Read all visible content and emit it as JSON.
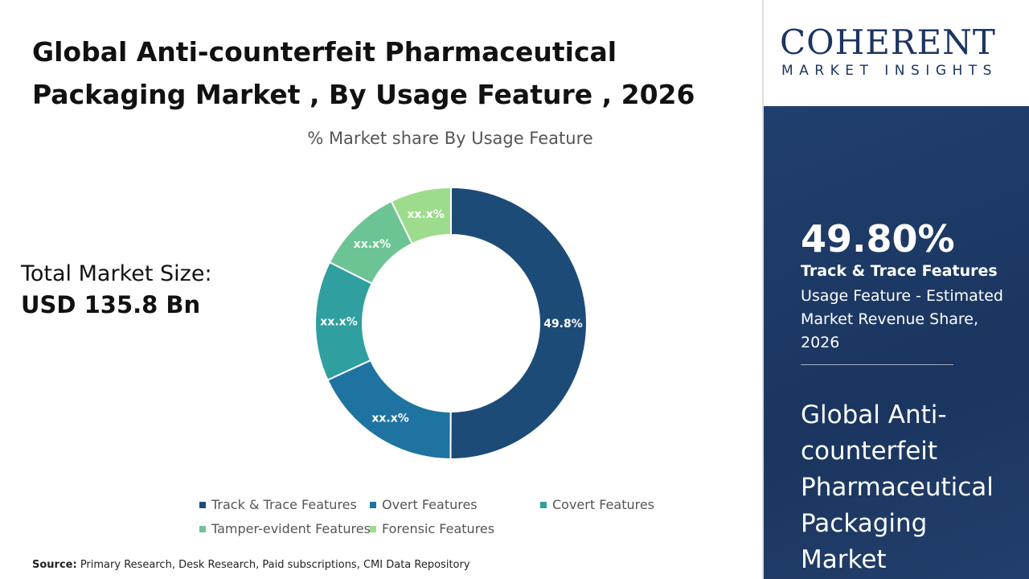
{
  "title": "Global Anti-counterfeit Pharmaceutical Packaging Market , By Usage Feature , 2026",
  "total_market": {
    "label": "Total Market Size:",
    "value": "USD 135.8 Bn"
  },
  "source": {
    "label": "Source:",
    "text": " Primary Research, Desk Research, Paid subscriptions, CMI Data Repository"
  },
  "logo": {
    "line1": "COHERENT",
    "line2": "MARKET INSIGHTS"
  },
  "highlight": {
    "value": "49.80%",
    "name": "Track & Trace Features",
    "description": "Usage Feature - Estimated Market Revenue Share, 2026",
    "market_title": "Global Anti-counterfeit Pharmaceutical Packaging Market"
  },
  "chart_data": {
    "type": "pie",
    "donut": true,
    "title": "% Market share By Usage Feature",
    "categories": [
      "Track & Trace Features",
      "Overt Features",
      "Covert Features",
      "Tamper-evident Features",
      "Forensic Features"
    ],
    "values": [
      49.8,
      18.0,
      14.2,
      10.3,
      7.2
    ],
    "data_labels": [
      "49.8%",
      "xx.x%",
      "xx.x%",
      "xx.x%",
      "xx.x%"
    ],
    "colors": [
      "#1d4b78",
      "#1f73a0",
      "#2f9f9f",
      "#6cc494",
      "#9ddc8c"
    ],
    "legend_position": "bottom"
  }
}
